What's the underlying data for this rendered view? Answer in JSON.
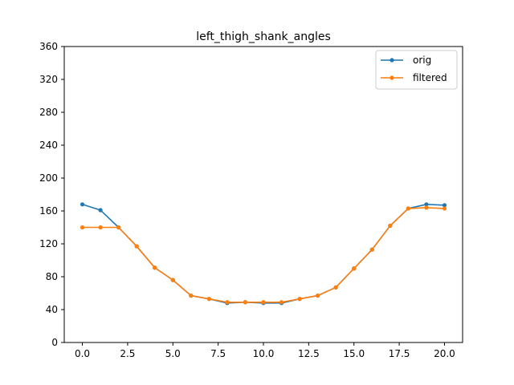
{
  "chart_data": {
    "type": "line",
    "title": "left_thigh_shank_angles",
    "xlabel": "",
    "ylabel": "",
    "xlim": [
      -1.0,
      21.0
    ],
    "ylim": [
      0,
      360
    ],
    "xticks": [
      0.0,
      2.5,
      5.0,
      7.5,
      10.0,
      12.5,
      15.0,
      17.5,
      20.0
    ],
    "xtick_labels": [
      "0.0",
      "2.5",
      "5.0",
      "7.5",
      "10.0",
      "12.5",
      "15.0",
      "17.5",
      "20.0"
    ],
    "yticks": [
      0,
      40,
      80,
      120,
      160,
      200,
      240,
      280,
      320,
      360
    ],
    "ytick_labels": [
      "0",
      "40",
      "80",
      "120",
      "160",
      "200",
      "240",
      "280",
      "320",
      "360"
    ],
    "grid": false,
    "legend_position": "top-right",
    "x": [
      0,
      1,
      2,
      3,
      4,
      5,
      6,
      7,
      8,
      9,
      10,
      11,
      12,
      13,
      14,
      15,
      16,
      17,
      18,
      19,
      20
    ],
    "series": [
      {
        "name": "orig",
        "color": "#1f77b4",
        "marker": "circle",
        "values": [
          168,
          161,
          140,
          117,
          91,
          76,
          57,
          53,
          48,
          49,
          48,
          48,
          53,
          57,
          67,
          90,
          113,
          142,
          163,
          168,
          167
        ]
      },
      {
        "name": "filtered",
        "color": "#ff7f0e",
        "marker": "circle",
        "values": [
          140,
          140,
          140,
          117,
          91,
          76,
          57,
          53,
          49,
          49,
          49,
          49,
          53,
          57,
          67,
          90,
          113,
          142,
          163,
          164,
          163
        ]
      }
    ]
  }
}
